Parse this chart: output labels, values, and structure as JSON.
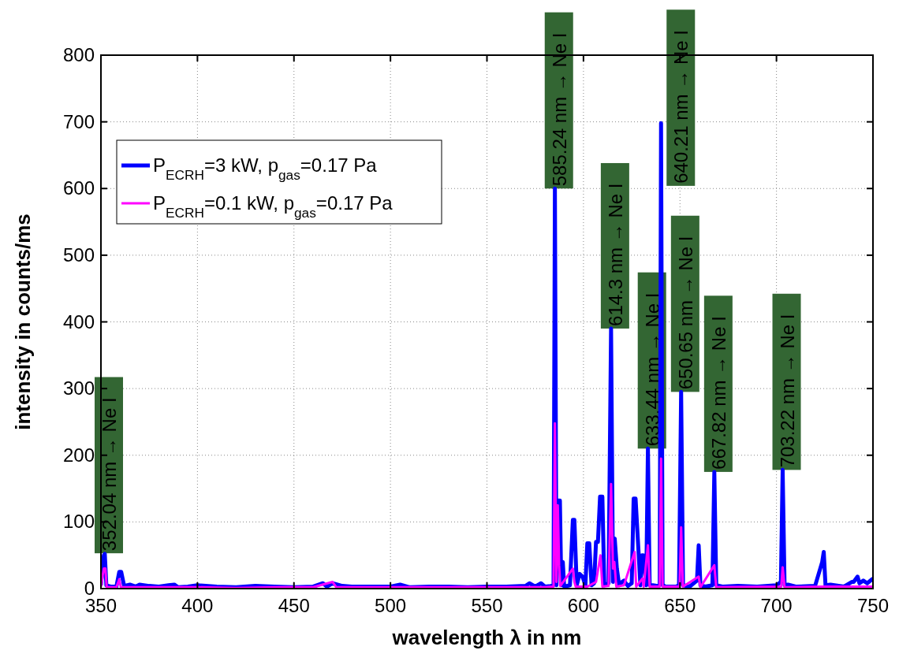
{
  "chart_data": {
    "type": "line",
    "xlabel": "wavelength λ in nm",
    "ylabel": "intensity in counts/ms",
    "xlim": [
      350,
      750
    ],
    "xticks": [
      350,
      400,
      450,
      500,
      550,
      600,
      650,
      700,
      750
    ],
    "ylim": [
      0,
      800
    ],
    "yticks": [
      0,
      100,
      200,
      300,
      400,
      500,
      600,
      700,
      800
    ],
    "grid": true,
    "legend": "top left",
    "marker": "none",
    "line_style": "solid",
    "series": [
      {
        "name": "P$_{ECRH}$=3 kW, p$_{gas}$=0.17 Pa",
        "color": "#0000ff",
        "x": [
          350,
          351.5,
          352,
          352.8,
          355,
          358,
          359.5,
          360.5,
          362,
          365,
          368,
          370,
          375,
          380,
          385,
          388,
          390,
          395,
          400,
          410,
          420,
          430,
          440,
          450,
          460,
          465,
          467,
          470,
          475,
          480,
          490,
          500,
          505,
          510,
          520,
          530,
          540,
          550,
          560,
          570,
          572,
          575,
          578,
          580,
          583,
          584.5,
          585.2,
          586,
          586.8,
          587.8,
          588.5,
          589.3,
          590,
          593,
          594.5,
          595.3,
          596.5,
          598,
          599.5,
          601,
          602,
          603,
          604.2,
          605.5,
          606.5,
          607.5,
          608.6,
          609.8,
          610.8,
          613,
          614.3,
          615.3,
          616.2,
          617.3,
          618.5,
          620,
          621,
          623,
          625,
          626,
          627,
          629.5,
          630.3,
          631,
          632.5,
          633.4,
          634.3,
          636,
          638.5,
          639.5,
          640.2,
          641,
          642.3,
          645,
          648,
          649.5,
          650.6,
          651.6,
          655,
          658.8,
          659.7,
          660.6,
          663,
          666.8,
          667.8,
          668.8,
          672,
          680,
          690,
          700,
          702.3,
          703.2,
          704.2,
          706,
          710,
          720,
          723.7,
          724.5,
          725.4,
          728,
          735,
          739,
          740,
          742,
          743,
          745,
          747,
          750
        ],
        "values": [
          5,
          50,
          52,
          5,
          3,
          3,
          25,
          25,
          4,
          6,
          3,
          6,
          4,
          3,
          5,
          6,
          2,
          3,
          5,
          3,
          2,
          4,
          3,
          2,
          3,
          8,
          3,
          8,
          4,
          3,
          3,
          3,
          6,
          2,
          3,
          3,
          2,
          3,
          3,
          4,
          8,
          3,
          8,
          3,
          4,
          5,
          600,
          5,
          132,
          132,
          5,
          40,
          3,
          5,
          103,
          103,
          5,
          22,
          18,
          5,
          68,
          68,
          5,
          8,
          70,
          70,
          138,
          138,
          5,
          8,
          390,
          10,
          75,
          30,
          5,
          10,
          12,
          4,
          8,
          135,
          135,
          5,
          50,
          50,
          5,
          210,
          5,
          5,
          4,
          5,
          698,
          6,
          3,
          3,
          3,
          5,
          295,
          5,
          3,
          12,
          65,
          5,
          3,
          5,
          175,
          5,
          3,
          4,
          3,
          5,
          10,
          178,
          5,
          6,
          3,
          4,
          40,
          55,
          5,
          6,
          3,
          10,
          10,
          18,
          8,
          12,
          8,
          15
        ]
      },
      {
        "name": "P$_{ECRH}$=0.1 kW, p$_{gas}$=0.17 Pa",
        "color": "#ff00ff",
        "x": [
          350,
          351.5,
          352.3,
          353,
          358,
          359.5,
          360.3,
          365,
          380,
          400,
          420,
          440,
          460,
          470,
          472,
          500,
          540,
          560,
          580,
          584.5,
          585.2,
          586,
          586.7,
          587.4,
          588,
          594.5,
          595.3,
          596,
          602,
          606.5,
          608.8,
          609.8,
          613,
          614.3,
          615.3,
          616,
          617,
          621,
          626.5,
          627.3,
          630.5,
          631.2,
          633.4,
          634.3,
          639.5,
          640.2,
          641,
          649.8,
          650.6,
          651.5,
          659.7,
          660.6,
          667.8,
          668.8,
          702.5,
          703.2,
          704.2,
          724.5,
          750
        ],
        "values": [
          3,
          30,
          30,
          2,
          2,
          14,
          2,
          2,
          2,
          2,
          1,
          2,
          2,
          10,
          2,
          2,
          2,
          2,
          2,
          3,
          248,
          10,
          125,
          35,
          4,
          30,
          10,
          3,
          3,
          10,
          50,
          3,
          4,
          157,
          30,
          40,
          3,
          5,
          55,
          3,
          15,
          3,
          65,
          3,
          3,
          195,
          3,
          3,
          92,
          3,
          18,
          2,
          35,
          2,
          3,
          32,
          2,
          3,
          3
        ]
      }
    ],
    "annotations": [
      {
        "text": "352.04 nm → Ne I",
        "x": 352.04,
        "y": 53
      },
      {
        "text": "585.24 nm → Ne I",
        "x": 585.24,
        "y": 600
      },
      {
        "text": "614.3 nm → Ne I",
        "x": 614.3,
        "y": 390
      },
      {
        "text": "633.44 nm → Ne I",
        "x": 633.44,
        "y": 210
      },
      {
        "text": "640.21 nm → Ne I",
        "x": 640.21,
        "y": 604
      },
      {
        "text": "650.65 nm → Ne I",
        "x": 650.65,
        "y": 295
      },
      {
        "text": "667.82 nm → Ne I",
        "x": 667.82,
        "y": 175
      },
      {
        "text": "703.22 nm → Ne I",
        "x": 703.22,
        "y": 178
      }
    ]
  }
}
